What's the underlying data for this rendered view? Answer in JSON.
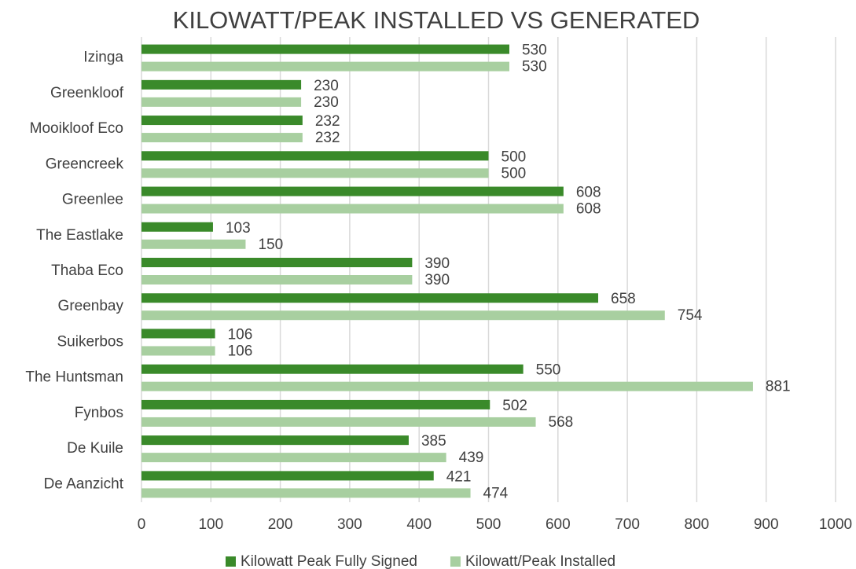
{
  "chart_data": {
    "type": "bar",
    "title": "KILOWATT/PEAK INSTALLED VS GENERATED",
    "categories": [
      "Izinga",
      "Greenkloof",
      "Mooikloof Eco",
      "Greencreek",
      "Greenlee",
      "The Eastlake",
      "Thaba Eco",
      "Greenbay",
      "Suikerbos",
      "The Huntsman",
      "Fynbos",
      "De Kuile",
      "De Aanzicht"
    ],
    "series": [
      {
        "name": "Kilowatt Peak Fully Signed",
        "color": "#3a8a2a",
        "values": [
          530,
          230,
          232,
          500,
          608,
          103,
          390,
          658,
          106,
          550,
          502,
          385,
          421
        ]
      },
      {
        "name": "Kilowatt/Peak Installed",
        "color": "#a8cfa0",
        "values": [
          530,
          230,
          232,
          500,
          608,
          150,
          390,
          754,
          106,
          881,
          568,
          439,
          474
        ]
      }
    ],
    "xlim": [
      0,
      1000
    ],
    "xticks": [
      0,
      100,
      200,
      300,
      400,
      500,
      600,
      700,
      800,
      900,
      1000
    ],
    "grid": true,
    "legend": "bottom"
  }
}
